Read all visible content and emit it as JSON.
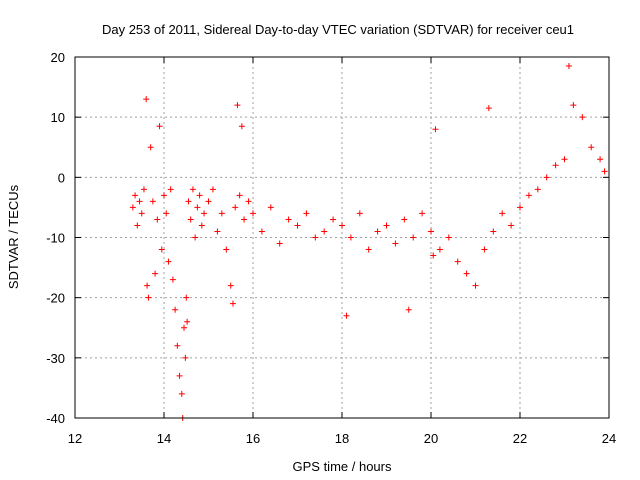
{
  "chart_data": {
    "type": "scatter",
    "title": "Day 253 of 2011, Sidereal Day-to-day VTEC variation (SDTVAR) for receiver ceu1",
    "xlabel": "GPS time / hours",
    "ylabel": "SDTVAR / TECUs",
    "xlim": [
      12,
      24
    ],
    "ylim": [
      -40,
      20
    ],
    "xticks": [
      12,
      14,
      16,
      18,
      20,
      22,
      24
    ],
    "xtick_labels": [
      "12",
      "14",
      "16",
      "18",
      "20",
      "22",
      "24"
    ],
    "yticks": [
      -40,
      -30,
      -20,
      -10,
      0,
      10,
      20
    ],
    "ytick_labels": [
      "-40",
      "-30",
      "-20",
      "-10",
      "0",
      "10",
      "20"
    ],
    "grid": true,
    "marker": "plus",
    "series": [
      {
        "name": "SDTVAR",
        "color": "#ff0000",
        "x": [
          13.3,
          13.35,
          13.4,
          13.45,
          13.5,
          13.55,
          13.6,
          13.62,
          13.65,
          13.7,
          13.75,
          13.8,
          13.85,
          13.9,
          13.95,
          14.0,
          14.05,
          14.1,
          14.15,
          14.2,
          14.25,
          14.3,
          14.35,
          14.4,
          14.42,
          14.45,
          14.48,
          14.5,
          14.52,
          14.55,
          14.6,
          14.65,
          14.7,
          14.75,
          14.8,
          14.85,
          14.9,
          15.0,
          15.1,
          15.2,
          15.3,
          15.4,
          15.5,
          15.55,
          15.6,
          15.65,
          15.7,
          15.75,
          15.8,
          15.9,
          16.0,
          16.2,
          16.4,
          16.6,
          16.8,
          17.0,
          17.2,
          17.4,
          17.6,
          17.8,
          18.0,
          18.1,
          18.2,
          18.4,
          18.6,
          18.8,
          19.0,
          19.2,
          19.4,
          19.5,
          19.6,
          19.8,
          20.0,
          20.05,
          20.1,
          20.2,
          20.4,
          20.6,
          20.8,
          21.0,
          21.2,
          21.3,
          21.4,
          21.6,
          21.8,
          22.0,
          22.2,
          22.4,
          22.6,
          22.8,
          23.0,
          23.1,
          23.2,
          23.4,
          23.6,
          23.8,
          23.9
        ],
        "y": [
          -5,
          -3,
          -8,
          -4,
          -6,
          -2,
          13,
          -18,
          -20,
          5,
          -4,
          -16,
          -7,
          8.5,
          -12,
          -3,
          -6,
          -14,
          -2,
          -17,
          -22,
          -28,
          -33,
          -36,
          -40,
          -25,
          -30,
          -20,
          -24,
          -4,
          -7,
          -2,
          -10,
          -5,
          -3,
          -8,
          -6,
          -4,
          -2,
          -9,
          -6,
          -12,
          -18,
          -21,
          -5,
          12,
          -3,
          8.5,
          -7,
          -4,
          -6,
          -9,
          -5,
          -11,
          -7,
          -8,
          -6,
          -10,
          -9,
          -7,
          -8,
          -23,
          -10,
          -6,
          -12,
          -9,
          -8,
          -11,
          -7,
          -22,
          -10,
          -6,
          -9,
          -13,
          8,
          -12,
          -10,
          -14,
          -16,
          -18,
          -12,
          11.5,
          -9,
          -6,
          -8,
          -5,
          -3,
          -2,
          0,
          2,
          3,
          18.5,
          12,
          10,
          5,
          3,
          1
        ]
      }
    ]
  }
}
